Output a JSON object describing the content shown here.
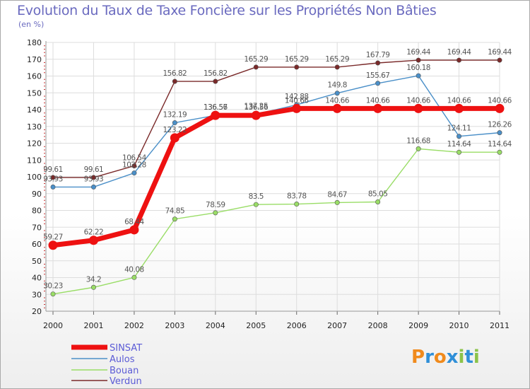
{
  "title": "Evolution du Taux de Taxe Foncière sur les Propriétés Non Bâties",
  "subtitle": "(en %)",
  "logo": {
    "text": "Proxiti",
    "letters": [
      "P",
      "r",
      "o",
      "x",
      "i",
      "t",
      "i"
    ],
    "colors": [
      "#f08a1c",
      "#2f8fd8",
      "#f08a1c",
      "#2f8fd8",
      "#8bc34a",
      "#2f8fd8",
      "#8bc34a"
    ]
  },
  "chart_data": {
    "type": "line",
    "title": "Evolution du Taux de Taxe Foncière sur les Propriétés Non Bâties",
    "ylabel": "(en %)",
    "xlabel": "",
    "ylim": [
      20,
      180
    ],
    "yticks": [
      "20",
      "30",
      "40",
      "50",
      "60",
      "70",
      "80",
      "90",
      "100",
      "110",
      "120",
      "130",
      "140",
      "150",
      "160",
      "170",
      "180"
    ],
    "categories": [
      "2000",
      "2001",
      "2002",
      "2003",
      "2004",
      "2005",
      "2006",
      "2007",
      "2008",
      "2009",
      "2010",
      "2011"
    ],
    "series": [
      {
        "name": "SINSAT",
        "color": "#ee1111",
        "values": [
          59.27,
          62.22,
          68.44,
          123.22,
          136.57,
          136.56,
          140.66,
          140.66,
          140.66,
          140.66,
          140.66,
          140.66
        ],
        "labels": [
          "59.27",
          "62.22",
          "68.44",
          "123.22",
          "136.57",
          "136.56",
          "140.66",
          "140.66",
          "140.66",
          "140.66",
          "140.66",
          "140.66"
        ]
      },
      {
        "name": "Aulos",
        "color": "#4a8fc8",
        "values": [
          93.93,
          93.93,
          102.28,
          132.19,
          136.56,
          137.25,
          142.88,
          149.8,
          155.67,
          160.18,
          124.11,
          126.26
        ],
        "labels": [
          "93.93",
          "93.93",
          "102.28",
          "132.19",
          "136.56",
          "137.25",
          "142.88",
          "149.8",
          "155.67",
          "160.18",
          "124.11",
          "126.26"
        ]
      },
      {
        "name": "Bouan",
        "color": "#99dd66",
        "values": [
          30.23,
          34.2,
          40.08,
          74.85,
          78.59,
          83.5,
          83.78,
          84.67,
          85.05,
          116.68,
          114.64,
          114.64
        ],
        "labels": [
          "30.23",
          "34.2",
          "40.08",
          "74.85",
          "78.59",
          "83.5",
          "83.78",
          "84.67",
          "85.05",
          "116.68",
          "114.64",
          "114.64"
        ]
      },
      {
        "name": "Verdun",
        "color": "#7a2a2a",
        "values": [
          99.61,
          99.61,
          106.54,
          156.82,
          156.82,
          165.29,
          165.29,
          165.29,
          167.79,
          169.44,
          169.44,
          169.44
        ],
        "labels": [
          "99.61",
          "99.61",
          "106.54",
          "156.82",
          "156.82",
          "165.29",
          "165.29",
          "165.29",
          "167.79",
          "169.44",
          "169.44",
          "169.44"
        ]
      }
    ],
    "legend": [
      "SINSAT",
      "Aulos",
      "Bouan",
      "Verdun"
    ],
    "legend_position": "bottom-left",
    "grid": true
  }
}
